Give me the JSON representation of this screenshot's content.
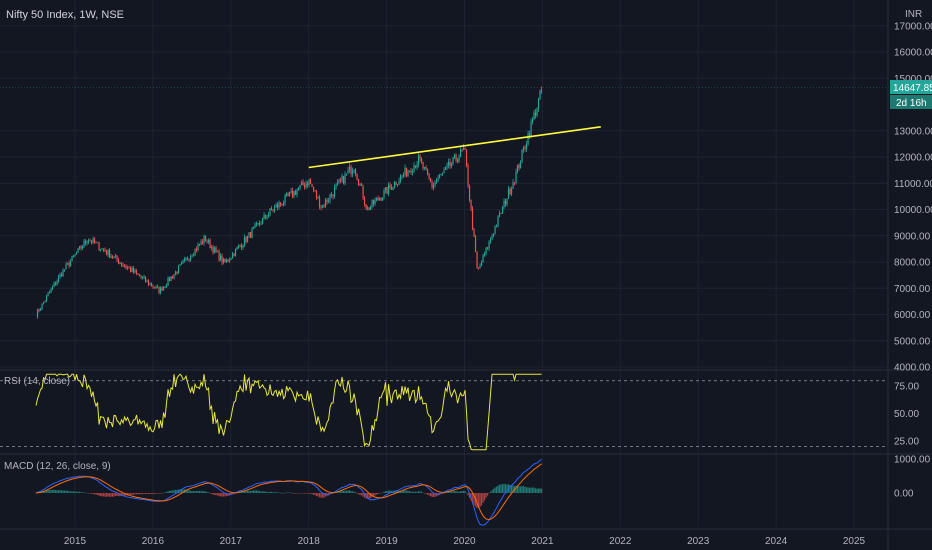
{
  "header": {
    "title": "Nifty 50 Index, 1W, NSE",
    "currency": "INR"
  },
  "price_badge": {
    "value": "14647.85",
    "countdown": "2d 16h"
  },
  "rsi": {
    "label": "RSI (14, close)"
  },
  "macd": {
    "label": "MACD (12, 26, close, 9)"
  },
  "colors": {
    "bg": "#131722",
    "grid": "#1f2230",
    "up": "#26a69a",
    "down": "#ef5350",
    "trendline": "#ffff3b",
    "rsi": "#e6e63c",
    "macd": "#2962ff",
    "signal": "#ff6d00",
    "badge": "#26a69a"
  },
  "chart_data": [
    {
      "type": "candlestick",
      "title": "Nifty 50 Index, 1W, NSE",
      "ylim": [
        3800,
        17300
      ],
      "ytick_labels": [
        "17000.00",
        "16000.00",
        "15000.00",
        "13000.00",
        "12000.00",
        "11000.00",
        "10000.00",
        "9000.00",
        "8000.00",
        "7000.00",
        "6000.00",
        "5000.00",
        "4000.00"
      ],
      "ytick_values": [
        17000,
        16000,
        15000,
        13000,
        12000,
        11000,
        10000,
        9000,
        8000,
        7000,
        6000,
        5000,
        4000
      ],
      "xtick_labels": [
        "2015",
        "2016",
        "2017",
        "2018",
        "2019",
        "2020",
        "2021",
        "2022",
        "2023",
        "2024",
        "2025"
      ],
      "trendline": {
        "start": [
          "2018-01",
          11600
        ],
        "end": [
          "2021-10",
          13150
        ]
      },
      "key_points": [
        {
          "t": "2014-07",
          "v": 6000
        },
        {
          "t": "2014-11",
          "v": 7600
        },
        {
          "t": "2015-03",
          "v": 8900
        },
        {
          "t": "2015-09",
          "v": 7800
        },
        {
          "t": "2016-02",
          "v": 6900
        },
        {
          "t": "2016-09",
          "v": 8900
        },
        {
          "t": "2016-12",
          "v": 7950
        },
        {
          "t": "2017-07",
          "v": 9900
        },
        {
          "t": "2018-01",
          "v": 11100
        },
        {
          "t": "2018-03",
          "v": 10100
        },
        {
          "t": "2018-08",
          "v": 11700
        },
        {
          "t": "2018-10",
          "v": 10000
        },
        {
          "t": "2019-06",
          "v": 11900
        },
        {
          "t": "2019-08",
          "v": 10900
        },
        {
          "t": "2020-01",
          "v": 12300
        },
        {
          "t": "2020-03",
          "v": 7600
        },
        {
          "t": "2020-09",
          "v": 11400
        },
        {
          "t": "2021-01",
          "v": 14600
        }
      ]
    },
    {
      "type": "line",
      "title": "RSI (14, close)",
      "ylim": [
        15,
        88
      ],
      "ytick_labels": [
        "75.00",
        "50.00",
        "25.00"
      ],
      "ytick_values": [
        75,
        50,
        25
      ],
      "levels": [
        80,
        20
      ]
    },
    {
      "type": "line",
      "title": "MACD (12, 26, close, 9)",
      "ytick_labels": [
        "1000.00",
        "0.00"
      ],
      "ytick_values": [
        1000,
        0
      ]
    }
  ]
}
